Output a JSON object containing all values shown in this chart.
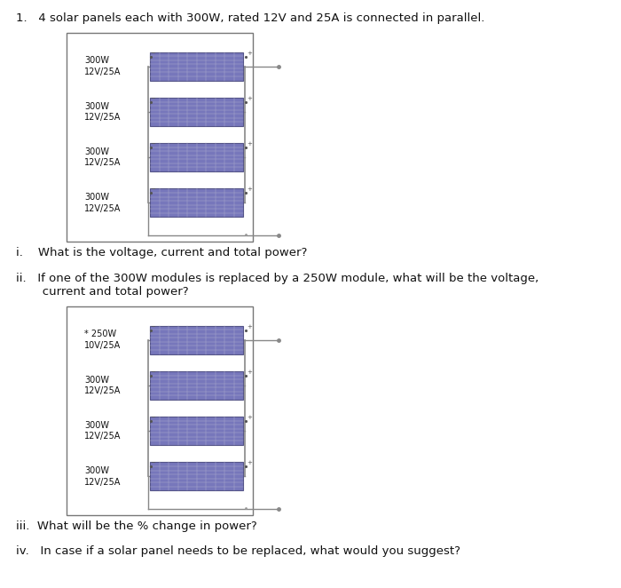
{
  "title": "1.   4 solar panels each with 300W, rated 12V and 25A is connected in parallel.",
  "question_i": "i.    What is the voltage, current and total power?",
  "question_ii_line1": "ii.   If one of the 300W modules is replaced by a 250W module, what will be the voltage,",
  "question_ii_line2": "       current and total power?",
  "question_iii": "iii.  What will be the % change in power?",
  "question_iv": "iv.   In case if a solar panel needs to be replaced, what would you suggest?",
  "panel1_labels": [
    "300W\n12V/25A",
    "300W\n12V/25A",
    "300W\n12V/25A",
    "300W\n12V/25A"
  ],
  "panel2_labels": [
    "* 250W\n10V/25A",
    "300W\n12V/25A",
    "300W\n12V/25A",
    "300W\n12V/25A"
  ],
  "panel_color": "#7777bb",
  "panel_grid_color": "#aaaacc",
  "outer_box_color": "#888888",
  "wire_color": "#888888",
  "text_color": "#111111",
  "bg_color": "#ffffff",
  "font_size_title": 9.5,
  "font_size_question": 9.5,
  "font_size_label": 7.0
}
